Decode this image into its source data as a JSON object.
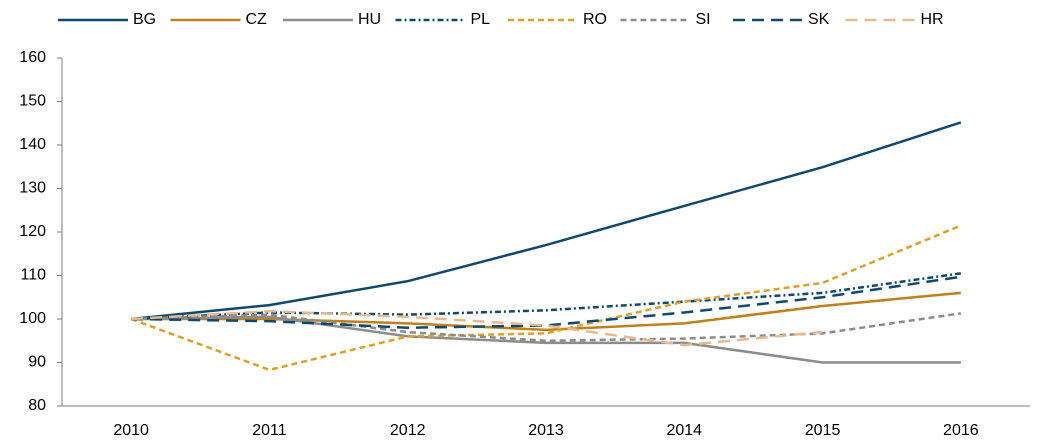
{
  "chart_data": {
    "type": "line",
    "categories": [
      "2010",
      "2011",
      "2012",
      "2013",
      "2014",
      "2015",
      "2016"
    ],
    "series": [
      {
        "name": "BG",
        "color": "#0e4a70",
        "dash": "solid",
        "values": [
          100,
          103.2,
          108.7,
          117,
          126,
          134.9,
          145.2
        ]
      },
      {
        "name": "CZ",
        "color": "#c0801b",
        "dash": "solid",
        "values": [
          100,
          100,
          99,
          97.5,
          99,
          103,
          106
        ]
      },
      {
        "name": "HU",
        "color": "#8c8c8c",
        "dash": "solid",
        "values": [
          100,
          100.5,
          96,
          94.5,
          94.5,
          90,
          90
        ]
      },
      {
        "name": "PL",
        "color": "#0e4a70",
        "dash": "dotted",
        "values": [
          100,
          101.5,
          101,
          102,
          104,
          106,
          110.5
        ]
      },
      {
        "name": "RO",
        "color": "#e0a024",
        "dash": "dashed",
        "values": [
          100,
          88.3,
          96,
          96.7,
          104,
          108.3,
          121.5
        ]
      },
      {
        "name": "SI",
        "color": "#8c8c8c",
        "dash": "dashed",
        "values": [
          100,
          101,
          97,
          95,
          95.5,
          96.7,
          101.3
        ]
      },
      {
        "name": "SK",
        "color": "#0e4a70",
        "dash": "longdash",
        "values": [
          100,
          99.5,
          98,
          98.5,
          101.5,
          105,
          109.7
        ]
      },
      {
        "name": "HR",
        "color": "#e8b98c",
        "dash": "longdash",
        "values": [
          100,
          101.8,
          100.5,
          98.5,
          94,
          97,
          null
        ]
      }
    ],
    "ylim": [
      80,
      160
    ],
    "yticks": [
      80,
      90,
      100,
      110,
      120,
      130,
      140,
      150,
      160
    ],
    "grid": false,
    "legend": "top"
  }
}
